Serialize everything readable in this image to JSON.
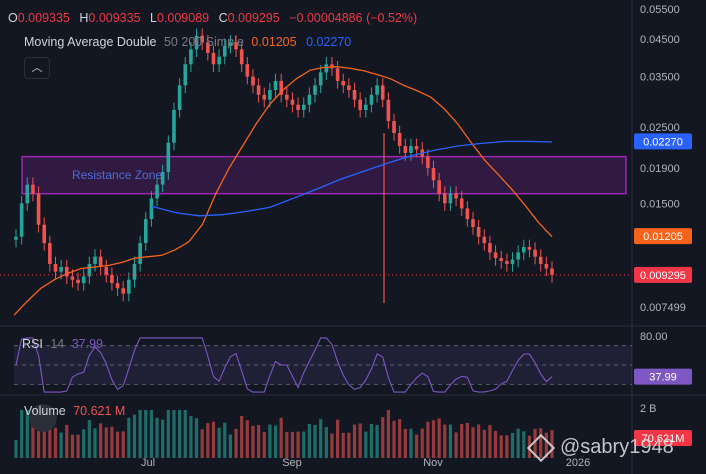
{
  "ohlc": {
    "o_label": "O",
    "o": "0.009335",
    "h_label": "H",
    "h": "0.009335",
    "l_label": "L",
    "l": "0.009089",
    "c_label": "C",
    "c": "0.009295",
    "change": "−0.00004886 (−0.52%)"
  },
  "ma_legend": {
    "name": "Moving Average Double",
    "params": "50 200 Simple",
    "ma50": "0.01205",
    "ma200": "0.02270"
  },
  "collapse_icon": "chevron-up-icon",
  "rsi_legend": {
    "name": "RSI",
    "length": "14",
    "value": "37.99"
  },
  "vol_legend": {
    "name": "Volume",
    "value": "70.621 M"
  },
  "zone_label": "Resistance Zone",
  "watermark": "@sabry1948",
  "price_badges": {
    "ma200": "0.02270",
    "ma50": "0.01205",
    "last": "0.009295",
    "rsi": "37.99",
    "vol": "70.621M"
  },
  "colors": {
    "bg": "#131722",
    "up": "#26a69a",
    "down": "#ef5350",
    "ma50": "#f7631b",
    "ma200": "#2962ff",
    "zone": "#9c27b0",
    "rsi": "#7e57c2",
    "last": "#f23645"
  },
  "chart_data": {
    "type": "candlestick",
    "y_scale": "log",
    "y_ticks": [
      "0.05500",
      "0.04500",
      "0.03500",
      "0.02500",
      "0.01900",
      "0.01500",
      "0.007499"
    ],
    "x_ticks": [
      "Jul",
      "Sep",
      "Nov",
      "2026"
    ],
    "rsi_ticks": [
      "80.00"
    ],
    "volume_ticks": [
      "2 B"
    ],
    "resistance_zone": [
      0.016,
      0.0205
    ],
    "last_price": 0.009295,
    "price_path": [
      0.012,
      0.015,
      0.017,
      0.016,
      0.013,
      0.0115,
      0.01,
      0.0095,
      0.0098,
      0.0092,
      0.009,
      0.0088,
      0.0092,
      0.01,
      0.0105,
      0.0098,
      0.0093,
      0.0088,
      0.0085,
      0.0082,
      0.009,
      0.01,
      0.0115,
      0.0135,
      0.0155,
      0.017,
      0.0185,
      0.0225,
      0.028,
      0.033,
      0.038,
      0.042,
      0.046,
      0.044,
      0.041,
      0.038,
      0.04,
      0.043,
      0.044,
      0.042,
      0.038,
      0.035,
      0.033,
      0.031,
      0.03,
      0.032,
      0.034,
      0.031,
      0.03,
      0.029,
      0.028,
      0.029,
      0.031,
      0.033,
      0.036,
      0.038,
      0.037,
      0.034,
      0.033,
      0.032,
      0.03,
      0.028,
      0.029,
      0.031,
      0.033,
      0.03,
      0.026,
      0.024,
      0.022,
      0.021,
      0.022,
      0.0215,
      0.0205,
      0.019,
      0.0175,
      0.016,
      0.015,
      0.016,
      0.0155,
      0.0145,
      0.0135,
      0.0128,
      0.012,
      0.0115,
      0.0108,
      0.0104,
      0.0102,
      0.01,
      0.0103,
      0.0108,
      0.0112,
      0.011,
      0.0105,
      0.01,
      0.0097,
      0.0093
    ],
    "ma50_path": [
      0.0071,
      0.0078,
      0.0085,
      0.009,
      0.0094,
      0.0097,
      0.0098,
      0.0099,
      0.0101,
      0.0104,
      0.0105,
      0.0106,
      0.011,
      0.0116,
      0.013,
      0.016,
      0.019,
      0.022,
      0.0255,
      0.029,
      0.032,
      0.0345,
      0.0365,
      0.0372,
      0.0374,
      0.037,
      0.0364,
      0.0355,
      0.0345,
      0.033,
      0.0318,
      0.0305,
      0.0282,
      0.0255,
      0.0225,
      0.02,
      0.0182,
      0.0165,
      0.0148,
      0.0132,
      0.012
    ],
    "ma200_path": [
      0.0147,
      0.0141,
      0.0138,
      0.0139,
      0.0142,
      0.0146,
      0.0155,
      0.0165,
      0.0176,
      0.0186,
      0.0196,
      0.0206,
      0.0214,
      0.022,
      0.0224,
      0.0227,
      0.0227,
      0.0226
    ],
    "rsi_band": [
      30,
      70
    ],
    "rsi_last": 37.99
  }
}
